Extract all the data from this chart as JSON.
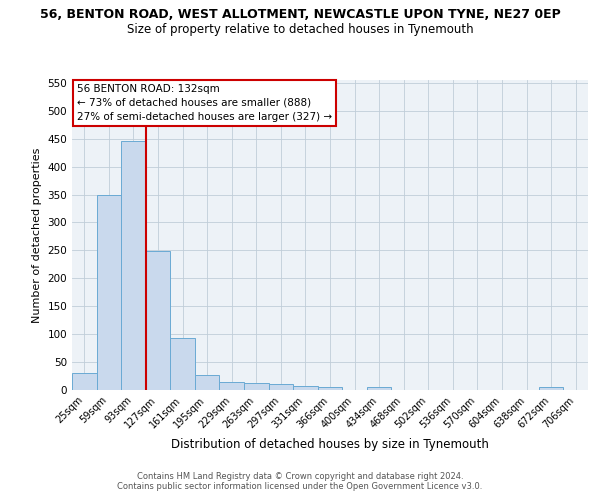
{
  "title_line1": "56, BENTON ROAD, WEST ALLOTMENT, NEWCASTLE UPON TYNE, NE27 0EP",
  "title_line2": "Size of property relative to detached houses in Tynemouth",
  "xlabel": "Distribution of detached houses by size in Tynemouth",
  "ylabel": "Number of detached properties",
  "bin_labels": [
    "25sqm",
    "59sqm",
    "93sqm",
    "127sqm",
    "161sqm",
    "195sqm",
    "229sqm",
    "263sqm",
    "297sqm",
    "331sqm",
    "366sqm",
    "400sqm",
    "434sqm",
    "468sqm",
    "502sqm",
    "536sqm",
    "570sqm",
    "604sqm",
    "638sqm",
    "672sqm",
    "706sqm"
  ],
  "bar_heights": [
    30,
    350,
    445,
    248,
    93,
    26,
    15,
    13,
    10,
    8,
    5,
    0,
    5,
    0,
    0,
    0,
    0,
    0,
    0,
    5,
    0
  ],
  "bar_color": "#c9d9ed",
  "bar_edge_color": "#6aaad4",
  "vline_color": "#cc0000",
  "vline_index": 2.5,
  "annotation_title": "56 BENTON ROAD: 132sqm",
  "annotation_line1": "← 73% of detached houses are smaller (888)",
  "annotation_line2": "27% of semi-detached houses are larger (327) →",
  "annotation_box_color": "#cc0000",
  "ylim": [
    0,
    555
  ],
  "yticks": [
    0,
    50,
    100,
    150,
    200,
    250,
    300,
    350,
    400,
    450,
    500,
    550
  ],
  "grid_color": "#c0cdd8",
  "footer_line1": "Contains HM Land Registry data © Crown copyright and database right 2024.",
  "footer_line2": "Contains public sector information licensed under the Open Government Licence v3.0.",
  "bg_color": "#edf2f7"
}
